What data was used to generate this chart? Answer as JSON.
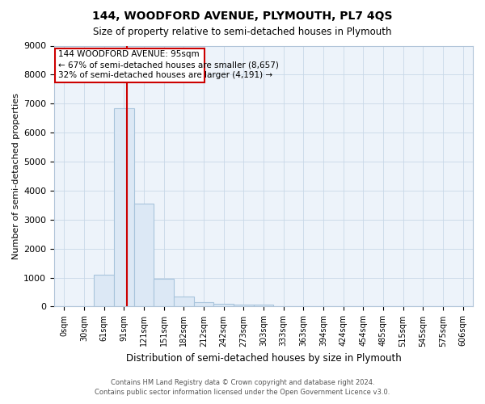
{
  "title": "144, WOODFORD AVENUE, PLYMOUTH, PL7 4QS",
  "subtitle": "Size of property relative to semi-detached houses in Plymouth",
  "xlabel": "Distribution of semi-detached houses by size in Plymouth",
  "ylabel": "Number of semi-detached properties",
  "footer1": "Contains HM Land Registry data © Crown copyright and database right 2024.",
  "footer2": "Contains public sector information licensed under the Open Government Licence v3.0.",
  "annotation_line1": "144 WOODFORD AVENUE: 95sqm",
  "annotation_line2": "← 67% of semi-detached houses are smaller (8,657)",
  "annotation_line3": "32% of semi-detached houses are larger (4,191) →",
  "bar_color": "#dce8f5",
  "bar_edge_color": "#a8c4dc",
  "red_line_color": "#cc0000",
  "annotation_box_edge": "#cc0000",
  "ylim": [
    0,
    9000
  ],
  "yticks": [
    0,
    1000,
    2000,
    3000,
    4000,
    5000,
    6000,
    7000,
    8000,
    9000
  ],
  "bin_labels": [
    "0sqm",
    "30sqm",
    "61sqm",
    "91sqm",
    "121sqm",
    "151sqm",
    "182sqm",
    "212sqm",
    "242sqm",
    "273sqm",
    "303sqm",
    "333sqm",
    "363sqm",
    "394sqm",
    "424sqm",
    "454sqm",
    "485sqm",
    "515sqm",
    "545sqm",
    "575sqm",
    "606sqm"
  ],
  "bar_heights": [
    0,
    0,
    1100,
    6850,
    3550,
    950,
    340,
    150,
    100,
    80,
    80,
    0,
    0,
    0,
    0,
    0,
    0,
    0,
    0,
    0,
    0
  ],
  "red_line_x": 3.13
}
